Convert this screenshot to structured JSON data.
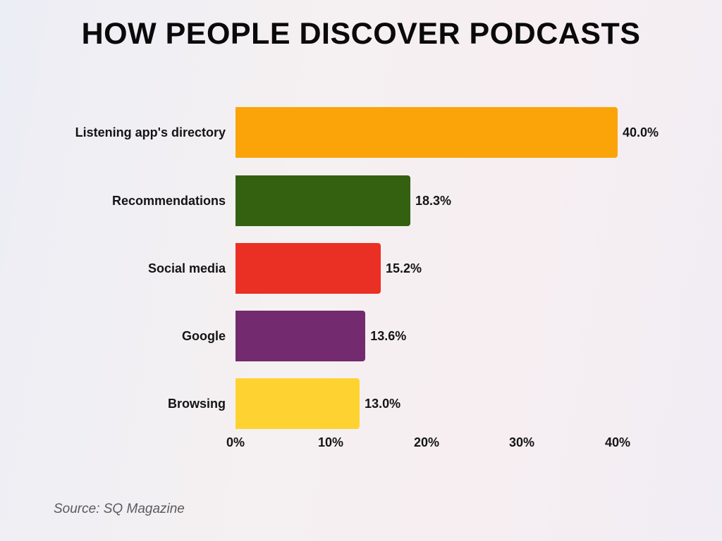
{
  "title": "HOW PEOPLE DISCOVER PODCASTS",
  "source": "Source: SQ Magazine",
  "chart_data": {
    "type": "bar",
    "orientation": "horizontal",
    "title": "HOW PEOPLE DISCOVER PODCASTS",
    "categories": [
      "Listening app's directory",
      "Recommendations",
      "Social media",
      "Google",
      "Browsing"
    ],
    "values": [
      40.0,
      18.3,
      15.2,
      13.6,
      13.0
    ],
    "value_labels": [
      "40.0%",
      "18.3%",
      "15.2%",
      "13.6%",
      "13.0%"
    ],
    "colors": [
      "#fba409",
      "#336110",
      "#ea3024",
      "#732a6f",
      "#fed331"
    ],
    "xlabel": "",
    "ylabel": "",
    "xlim": [
      0,
      40
    ],
    "x_ticks": [
      "0%",
      "10%",
      "20%",
      "30%",
      "40%"
    ],
    "grid": false,
    "legend": "none",
    "source": "Source: SQ Magazine"
  }
}
